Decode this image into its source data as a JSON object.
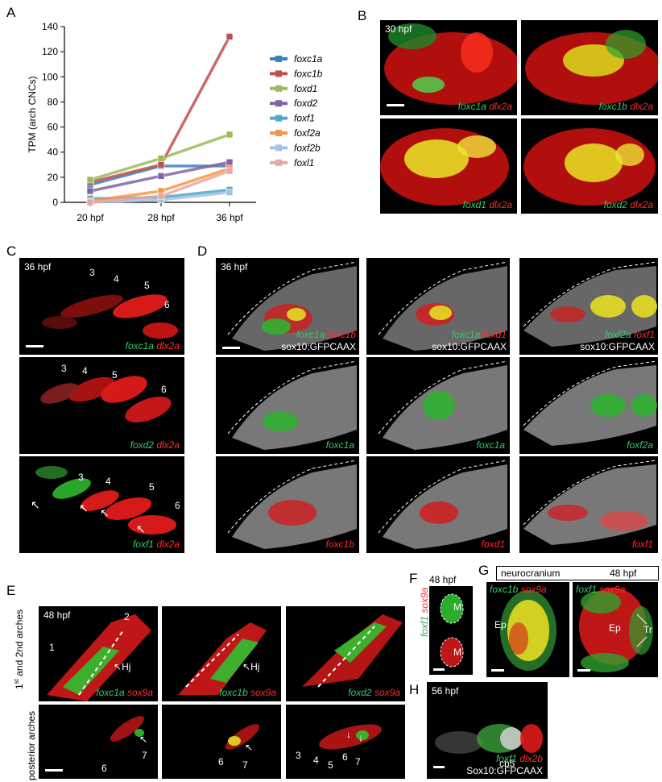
{
  "panels": {
    "A": "A",
    "B": "B",
    "C": "C",
    "D": "D",
    "E": "E",
    "F": "F",
    "G": "G",
    "H": "H"
  },
  "chart_data": {
    "type": "line",
    "categories": [
      "20 hpf",
      "28 hpf",
      "36 hpf"
    ],
    "ylabel": "TPM (arch CNCs)",
    "yticks": [
      0,
      20,
      40,
      60,
      80,
      100,
      120,
      140
    ],
    "ylim": [
      0,
      140
    ],
    "legend_position": "right",
    "series": [
      {
        "name": "foxc1a",
        "color": "#3d7fbf",
        "values": [
          14,
          29,
          29
        ]
      },
      {
        "name": "foxc1b",
        "color": "#c0504d",
        "values": [
          16,
          30,
          132
        ]
      },
      {
        "name": "foxd1",
        "color": "#9bbb59",
        "values": [
          18,
          35,
          54
        ]
      },
      {
        "name": "foxd2",
        "color": "#8064a2",
        "values": [
          9,
          21,
          32
        ]
      },
      {
        "name": "foxf1",
        "color": "#4bacc6",
        "values": [
          3,
          4,
          10
        ]
      },
      {
        "name": "foxf2a",
        "color": "#f79646",
        "values": [
          1,
          9,
          27
        ]
      },
      {
        "name": "foxf2b",
        "color": "#a5c1e6",
        "values": [
          0,
          2,
          8
        ]
      },
      {
        "name": "foxl1",
        "color": "#e6a6a4",
        "values": [
          0,
          5,
          25
        ]
      }
    ]
  },
  "B": {
    "stage": "30 hpf",
    "captions": [
      {
        "g": "foxc1a",
        "r": "dlx2a"
      },
      {
        "g": "foxc1b",
        "r": "dlx2a"
      },
      {
        "g": "foxd1",
        "r": "dlx2a"
      },
      {
        "g": "foxd2",
        "r": "dlx2a"
      }
    ]
  },
  "C": {
    "stage": "36 hpf",
    "nums": [
      "3",
      "4",
      "5",
      "6"
    ],
    "captions": [
      {
        "g": "foxc1a",
        "r": "dlx2a"
      },
      {
        "g": "foxd2",
        "r": "dlx2a"
      },
      {
        "g": "foxf1",
        "r": "dlx2a"
      }
    ]
  },
  "D": {
    "stage": "36 hpf",
    "transgene": "sox10:GFPCAAX",
    "col1": {
      "g": "foxc1a",
      "r": "foxc1b"
    },
    "col2": {
      "g": "foxc1a",
      "r": "foxd1"
    },
    "col3": {
      "g": "foxf2a",
      "r": "foxf1"
    }
  },
  "E": {
    "stage": "48 hpf",
    "row1_label_pre": "1",
    "row1_label_sup": "st",
    "row1_label_post": " and 2nd arches",
    "row2_label": "posterior arches",
    "n1": "1",
    "n2": "2",
    "hj": "Hj",
    "captions": [
      {
        "g": "foxc1a",
        "r": "sox9a"
      },
      {
        "g": "foxc1b",
        "r": "sox9a"
      },
      {
        "g": "foxd2",
        "r": "sox9a"
      }
    ],
    "p1": [
      "7",
      "6"
    ],
    "p2": [
      "6",
      "7"
    ],
    "p3": [
      "3",
      "4",
      "5",
      "6",
      "7"
    ]
  },
  "F": {
    "stage": "48 hpf",
    "g": "foxf1",
    "r": "sox9a",
    "m": "M"
  },
  "G": {
    "region": "neurocranium",
    "stage": "48 hpf",
    "left": {
      "g": "foxc1b",
      "r": "sox9a",
      "ep": "Ep"
    },
    "right": {
      "g": "foxf1",
      "r": "sox9a",
      "ep": "Ep",
      "tr": "Tr"
    }
  },
  "H": {
    "stage": "56 hpf",
    "cb": "cb5",
    "g": "foxf1",
    "r": "dlx2b",
    "tg": "Sox10:GFPCAAX"
  }
}
